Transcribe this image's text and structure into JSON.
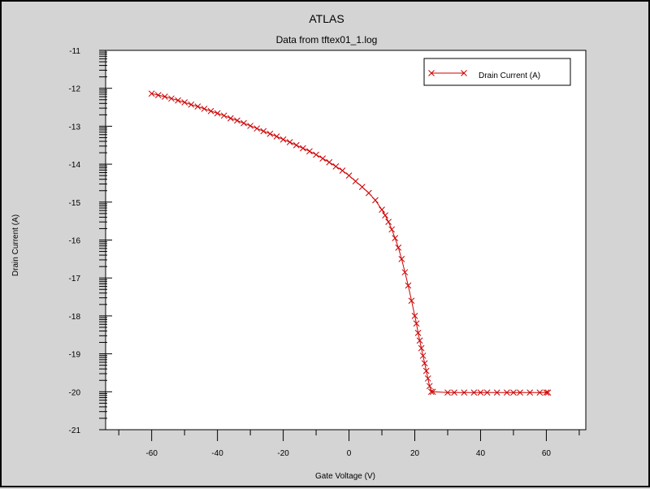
{
  "chart_data": {
    "type": "line",
    "title": "ATLAS",
    "subtitle": "Data from tftex01_1.log",
    "xlabel": "Gate Voltage (V)",
    "ylabel": "Drain Current (A)",
    "xlim": [
      -74,
      72
    ],
    "ylim": [
      -21,
      -11
    ],
    "xticks": [
      -60,
      -40,
      -20,
      0,
      20,
      40,
      60
    ],
    "yticks": [
      -21,
      -20,
      -19,
      -18,
      -17,
      -16,
      -15,
      -14,
      -13,
      -12,
      -11
    ],
    "grid": false,
    "legend_position": "top-right",
    "series": [
      {
        "name": "Drain Current (A)",
        "color": "#cc0000",
        "marker": "x",
        "x": [
          -60,
          -58,
          -56,
          -54,
          -52,
          -50,
          -48,
          -46,
          -44,
          -42,
          -40,
          -38,
          -36,
          -34,
          -32,
          -30,
          -28,
          -26,
          -24,
          -22,
          -20,
          -18,
          -16,
          -14,
          -12,
          -10,
          -8,
          -6,
          -4,
          -2,
          0,
          2,
          4,
          6,
          8,
          10,
          11,
          12,
          13,
          14,
          15,
          16,
          17,
          18,
          19,
          20,
          20.5,
          21,
          21.5,
          22,
          22.5,
          23,
          23.5,
          24,
          24.5,
          25,
          25.5,
          30,
          32,
          35,
          38,
          40,
          42,
          45,
          48,
          50,
          52,
          55,
          58,
          60,
          60.5
        ],
        "y": [
          -12.14,
          -12.18,
          -12.22,
          -12.27,
          -12.32,
          -12.37,
          -12.43,
          -12.48,
          -12.54,
          -12.6,
          -12.66,
          -12.72,
          -12.79,
          -12.85,
          -12.92,
          -12.99,
          -13.06,
          -13.13,
          -13.2,
          -13.27,
          -13.35,
          -13.42,
          -13.5,
          -13.58,
          -13.66,
          -13.75,
          -13.85,
          -13.95,
          -14.06,
          -14.17,
          -14.3,
          -14.45,
          -14.6,
          -14.76,
          -14.95,
          -15.2,
          -15.35,
          -15.52,
          -15.72,
          -15.95,
          -16.2,
          -16.5,
          -16.85,
          -17.2,
          -17.6,
          -18.0,
          -18.2,
          -18.45,
          -18.65,
          -18.85,
          -19.05,
          -19.25,
          -19.45,
          -19.65,
          -19.85,
          -20.0,
          -20.0,
          -20.02,
          -20.02,
          -20.02,
          -20.02,
          -20.02,
          -20.02,
          -20.02,
          -20.02,
          -20.02,
          -20.02,
          -20.02,
          -20.02,
          -20.02,
          -20.02
        ]
      }
    ]
  }
}
